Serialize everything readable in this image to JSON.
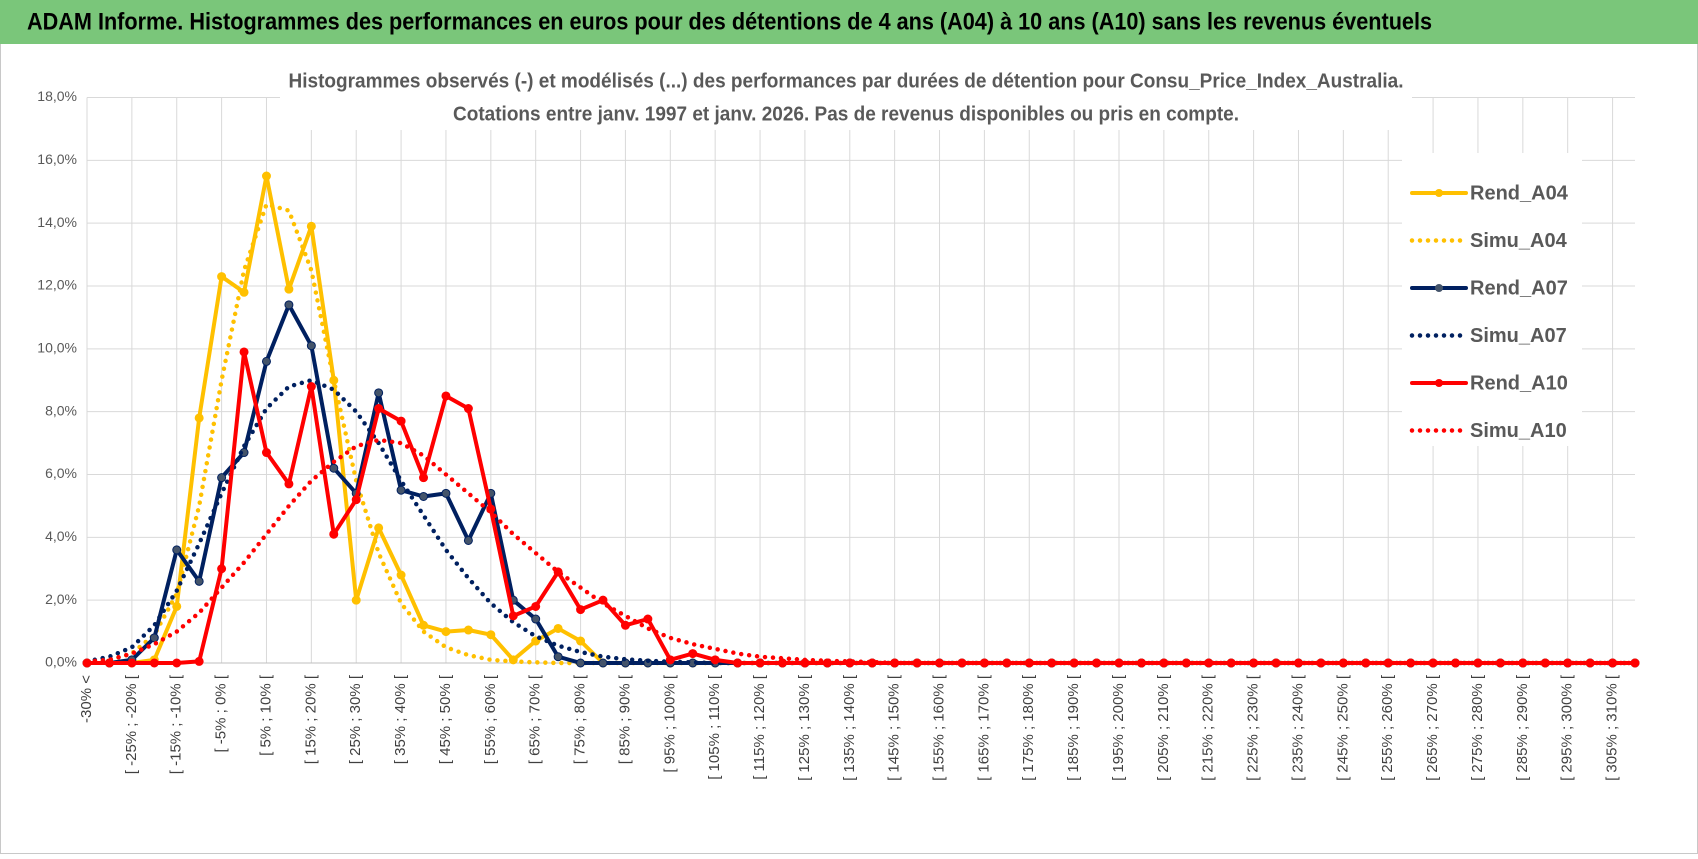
{
  "header": {
    "title": "ADAM Informe. Histogrammes des performances en euros pour des détentions de 4 ans (A04) à 10 ans (A10) sans les revenus éventuels"
  },
  "chart_data": {
    "type": "line",
    "title": "Histogrammes observés (-) et modélisés (...) des performances par durées de détention pour Consu_Price_Index_Australia.",
    "subtitle": "Cotations entre janv. 1997 et janv. 2026. Pas de revenus disponibles ou pris en compte.",
    "categories": [
      "-30% <",
      null,
      "[ -25% ; -20% [",
      null,
      "[ -15% ; -10% [",
      null,
      "[ -5% ; 0% [",
      null,
      "[ 5% ; 10% [",
      null,
      "[ 15% ; 20% [",
      null,
      "[ 25% ; 30% [",
      null,
      "[ 35% ; 40% [",
      null,
      "[ 45% ; 50% [",
      null,
      "[ 55% ; 60% [",
      null,
      "[ 65% ; 70% [",
      null,
      "[ 75% ; 80% [",
      null,
      "[ 85% ; 90% [",
      null,
      "[ 95% ; 100% [",
      null,
      "[ 105% ; 110% [",
      null,
      "[ 115% ; 120% [",
      null,
      "[ 125% ; 130% [",
      null,
      "[ 135% ; 140% [",
      null,
      "[ 145% ; 150% [",
      null,
      "[ 155% ; 160% [",
      null,
      "[ 165% ; 170% [",
      null,
      "[ 175% ; 180% [",
      null,
      "[ 185% ; 190% [",
      null,
      "[ 195% ; 200% [",
      null,
      "[ 205% ; 210% [",
      null,
      "[ 215% ; 220% [",
      null,
      "[ 225% ; 230% [",
      null,
      "[ 235% ; 240% [",
      null,
      "[ 245% ; 250% [",
      null,
      "[ 255% ; 260% [",
      null,
      "[ 265% ; 270% [",
      null,
      "[ 275% ; 280% [",
      null,
      "[ 285% ; 290% [",
      null,
      "[ 295% ; 300% [",
      null,
      "[ 305% ; 310% [",
      null
    ],
    "series": [
      {
        "name": "Rend_A04",
        "color": "#FFC000",
        "style": "solid",
        "markers": true,
        "values": [
          0,
          0,
          0,
          0.1,
          1.8,
          7.8,
          12.3,
          11.8,
          15.5,
          11.9,
          13.9,
          9.0,
          2.0,
          4.3,
          2.8,
          1.2,
          1.0,
          1.05,
          0.9,
          0.1,
          0.7,
          1.1,
          0.7,
          0,
          0,
          0,
          0,
          0,
          0,
          0,
          0,
          0,
          0,
          0,
          0,
          0,
          0,
          0,
          0,
          0,
          0,
          0,
          0,
          0,
          0,
          0,
          0,
          0,
          0,
          0,
          0,
          0,
          0,
          0,
          0,
          0,
          0,
          0,
          0,
          0,
          0,
          0,
          0,
          0,
          0,
          0,
          0,
          0,
          0,
          0
        ]
      },
      {
        "name": "Simu_A04",
        "color": "#FFC000",
        "style": "dotted",
        "markers": false,
        "values": [
          0,
          0.1,
          0.3,
          0.9,
          2.2,
          5.0,
          9.0,
          12.5,
          14.6,
          14.4,
          12.5,
          9.0,
          5.8,
          3.5,
          1.9,
          1.0,
          0.5,
          0.25,
          0.1,
          0.05,
          0.02,
          0,
          0,
          0,
          0,
          0,
          0,
          0,
          0,
          0,
          0,
          0,
          0,
          0,
          0,
          0,
          0,
          0,
          0,
          0,
          0,
          0,
          0,
          0,
          0,
          0,
          0,
          0,
          0,
          0,
          0,
          0,
          0,
          0,
          0,
          0,
          0,
          0,
          0,
          0,
          0,
          0,
          0,
          0,
          0,
          0,
          0,
          0,
          0,
          0
        ]
      },
      {
        "name": "Rend_A07",
        "color": "#002060",
        "style": "solid",
        "markers": true,
        "values": [
          0,
          0,
          0.1,
          0.8,
          3.6,
          2.6,
          5.9,
          6.7,
          9.6,
          11.4,
          10.1,
          6.2,
          5.4,
          8.6,
          5.5,
          5.3,
          5.4,
          3.9,
          5.4,
          2.0,
          1.4,
          0.2,
          0,
          0,
          0,
          0,
          0,
          0,
          0,
          0,
          0,
          0,
          0,
          0,
          0,
          0,
          0,
          0,
          0,
          0,
          0,
          0,
          0,
          0,
          0,
          0,
          0,
          0,
          0,
          0,
          0,
          0,
          0,
          0,
          0,
          0,
          0,
          0,
          0,
          0,
          0,
          0,
          0,
          0,
          0,
          0,
          0,
          0,
          0,
          0
        ]
      },
      {
        "name": "Simu_A07",
        "color": "#002060",
        "style": "dotted",
        "markers": false,
        "values": [
          0.05,
          0.2,
          0.5,
          1.2,
          2.3,
          3.8,
          5.4,
          6.9,
          8.1,
          8.8,
          9.0,
          8.7,
          8.0,
          7.0,
          5.8,
          4.7,
          3.6,
          2.7,
          1.9,
          1.3,
          0.85,
          0.55,
          0.35,
          0.2,
          0.12,
          0.07,
          0.04,
          0.02,
          0,
          0,
          0,
          0,
          0,
          0,
          0,
          0,
          0,
          0,
          0,
          0,
          0,
          0,
          0,
          0,
          0,
          0,
          0,
          0,
          0,
          0,
          0,
          0,
          0,
          0,
          0,
          0,
          0,
          0,
          0,
          0,
          0,
          0,
          0,
          0,
          0,
          0,
          0,
          0,
          0,
          0
        ]
      },
      {
        "name": "Rend_A10",
        "color": "#FF0000",
        "style": "solid",
        "markers": true,
        "values": [
          0,
          0,
          0,
          0,
          0,
          0.05,
          3.0,
          9.9,
          6.7,
          5.7,
          8.8,
          4.1,
          5.2,
          8.1,
          7.7,
          5.9,
          8.5,
          8.1,
          4.9,
          1.5,
          1.8,
          2.9,
          1.7,
          2.0,
          1.2,
          1.4,
          0.1,
          0.3,
          0.1,
          0,
          0,
          0,
          0,
          0,
          0,
          0,
          0,
          0,
          0,
          0,
          0,
          0,
          0,
          0,
          0,
          0,
          0,
          0,
          0,
          0,
          0,
          0,
          0,
          0,
          0,
          0,
          0,
          0,
          0,
          0,
          0,
          0,
          0,
          0,
          0,
          0,
          0,
          0,
          0,
          0
        ]
      },
      {
        "name": "Simu_A10",
        "color": "#FF0000",
        "style": "dotted",
        "markers": false,
        "values": [
          0.05,
          0.1,
          0.3,
          0.6,
          1.0,
          1.6,
          2.4,
          3.2,
          4.1,
          5.0,
          5.8,
          6.4,
          6.9,
          7.1,
          7.0,
          6.6,
          6.0,
          5.4,
          4.8,
          4.1,
          3.5,
          2.9,
          2.4,
          1.9,
          1.5,
          1.1,
          0.8,
          0.6,
          0.45,
          0.3,
          0.2,
          0.15,
          0.1,
          0.07,
          0.05,
          0.03,
          0,
          0,
          0,
          0,
          0,
          0,
          0,
          0,
          0,
          0,
          0,
          0,
          0,
          0,
          0,
          0,
          0,
          0,
          0,
          0,
          0,
          0,
          0,
          0,
          0,
          0,
          0,
          0,
          0,
          0,
          0,
          0,
          0,
          0
        ]
      }
    ],
    "ylim": [
      0,
      18
    ],
    "yticks": [
      {
        "value": 0,
        "label": "0,0%"
      },
      {
        "value": 2,
        "label": "2,0%"
      },
      {
        "value": 4,
        "label": "4,0%"
      },
      {
        "value": 6,
        "label": "6,0%"
      },
      {
        "value": 8,
        "label": "8,0%"
      },
      {
        "value": 10,
        "label": "10,0%"
      },
      {
        "value": 12,
        "label": "12,0%"
      },
      {
        "value": 14,
        "label": "14,0%"
      },
      {
        "value": 16,
        "label": "16,0%"
      },
      {
        "value": 18,
        "label": "18,0%"
      }
    ],
    "grid": true,
    "legend": "right"
  }
}
